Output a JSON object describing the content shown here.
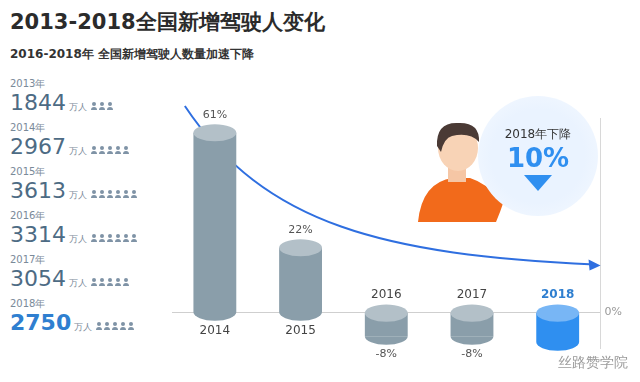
{
  "title": "2013-2018全国新增驾驶人变化",
  "subtitle": "2016-2018年 全国新增驾驶人数量加速下降",
  "driver_counts": {
    "years": [
      "2013年",
      "2014年",
      "2015年",
      "2016年",
      "2017年",
      "2018年"
    ],
    "values": [
      1844,
      2967,
      3613,
      3314,
      3054,
      2750
    ],
    "unit": "万人"
  },
  "chart_data": {
    "type": "bar",
    "categories": [
      "2014",
      "2015",
      "2016",
      "2017",
      "2018"
    ],
    "values": [
      61,
      22,
      -8,
      -8,
      -10
    ],
    "value_labels": [
      "61%",
      "22%",
      "-8%",
      "-8%",
      null
    ],
    "data_labels": true,
    "colors": [
      "#8a9eaa",
      "#8a9eaa",
      "#8a9eaa",
      "#8a9eaa",
      "#2f8ff0"
    ],
    "ylim": [
      -12,
      66
    ],
    "yticks": [
      {
        "value": 0,
        "label": "0%"
      }
    ],
    "grid": true
  },
  "callout": {
    "label": "2018年下降",
    "value_label": "10%"
  },
  "watermark": "丝路赞学院"
}
